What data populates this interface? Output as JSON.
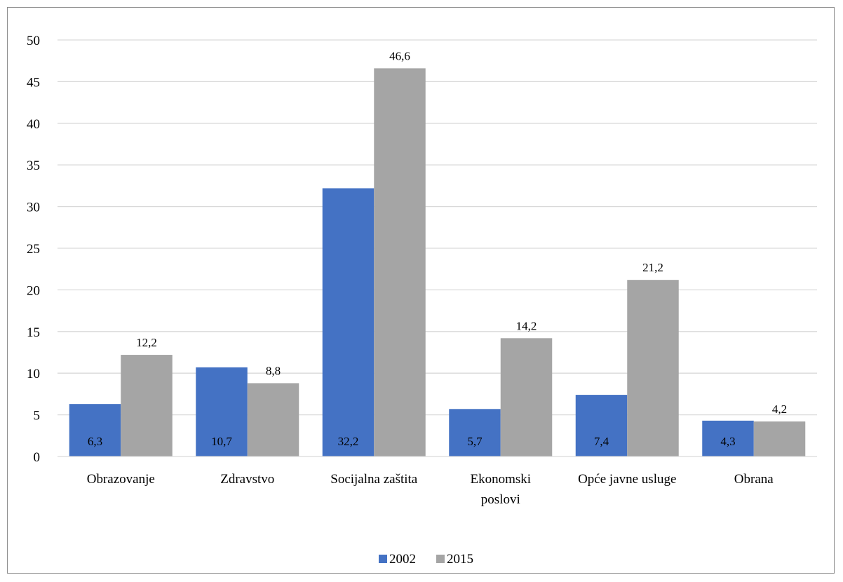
{
  "chart_data": {
    "type": "bar",
    "title": "",
    "xlabel": "",
    "ylabel": "",
    "categories": [
      [
        "Obrazovanje"
      ],
      [
        "Zdravstvo"
      ],
      [
        "Socijalna zaštita"
      ],
      [
        "Ekonomski",
        "poslovi"
      ],
      [
        "Opće javne usluge"
      ],
      [
        "Obrana"
      ]
    ],
    "series": [
      {
        "name": "2002",
        "color": "#4472c4",
        "values": [
          6.3,
          10.7,
          32.2,
          5.7,
          7.4,
          4.3
        ],
        "labels": [
          "6,3",
          "10,7",
          "32,2",
          "5,7",
          "7,4",
          "4,3"
        ],
        "label_position": "inside-base"
      },
      {
        "name": "2015",
        "color": "#a5a5a5",
        "values": [
          12.2,
          8.8,
          46.6,
          14.2,
          21.2,
          4.2
        ],
        "labels": [
          "12,2",
          "8,8",
          "46,6",
          "14,2",
          "21,2",
          "4,2"
        ],
        "label_position": "outside-end"
      }
    ],
    "ylim": [
      0,
      50
    ],
    "yticks": [
      0,
      5,
      10,
      15,
      20,
      25,
      30,
      35,
      40,
      45,
      50
    ],
    "grid": true,
    "gridline_color": "#d9d9d9",
    "legend": "bottom-center"
  }
}
